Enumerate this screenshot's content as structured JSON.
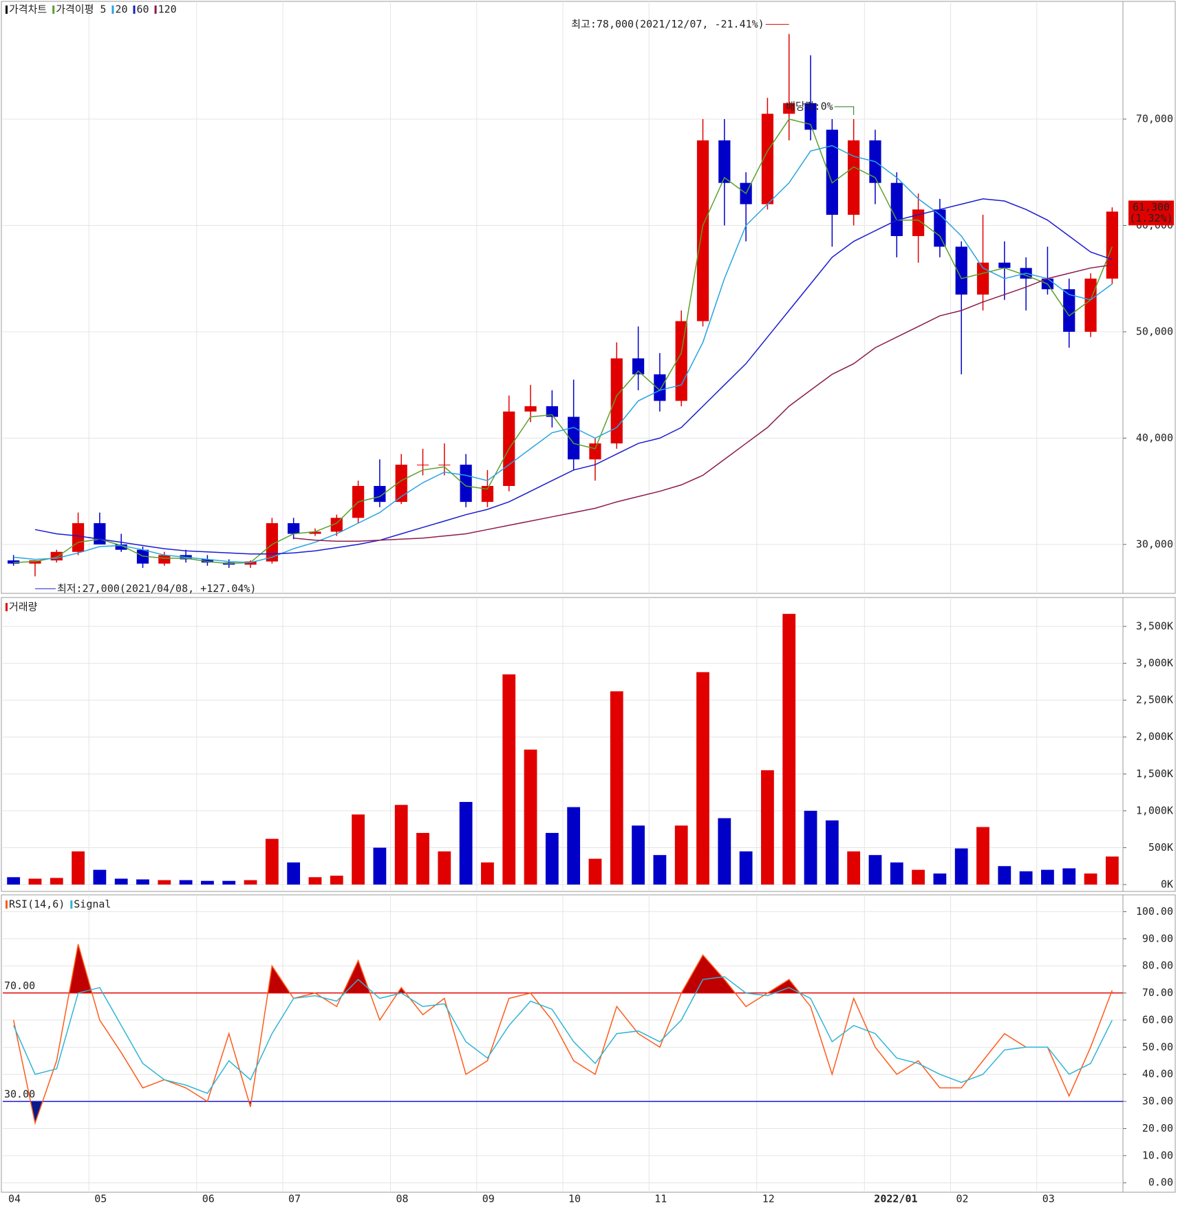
{
  "chart_data": [
    {
      "type": "candlestick",
      "title": "가격차트",
      "categories": [
        "04",
        null,
        null,
        null,
        "05",
        null,
        null,
        null,
        null,
        "06",
        null,
        null,
        null,
        "07",
        null,
        null,
        null,
        null,
        "08",
        null,
        null,
        null,
        "09",
        null,
        null,
        null,
        "10",
        null,
        null,
        null,
        "11",
        null,
        null,
        null,
        null,
        "12",
        null,
        null,
        null,
        null,
        "2022/01",
        null,
        null,
        null,
        "02",
        null,
        null,
        null,
        "03",
        null,
        null,
        null
      ],
      "open": [
        28500,
        28200,
        28500,
        29300,
        32000,
        30000,
        29500,
        28200,
        29000,
        28600,
        28300,
        28100,
        28400,
        32000,
        31000,
        31200,
        32500,
        35500,
        34000,
        37500,
        37500,
        37500,
        34000,
        35500,
        42500,
        43000,
        42000,
        38000,
        39500,
        47500,
        46000,
        43500,
        51000,
        68000,
        64000,
        62000,
        70500,
        71500,
        69000,
        61000,
        68000,
        64000,
        59000,
        61500,
        58000,
        53500,
        56500,
        56000,
        55000,
        54000,
        50000,
        55000
      ],
      "high": [
        29000,
        28400,
        29500,
        33000,
        33000,
        31000,
        29800,
        29300,
        29500,
        29000,
        28600,
        28500,
        32500,
        32500,
        31500,
        32800,
        36000,
        38000,
        38500,
        39000,
        39500,
        38500,
        37000,
        44000,
        45000,
        44500,
        45500,
        40000,
        49000,
        50500,
        48000,
        52000,
        70000,
        70000,
        65000,
        72000,
        78000,
        76000,
        70000,
        70000,
        69000,
        65000,
        63000,
        62500,
        58500,
        61000,
        58500,
        57000,
        58000,
        55000,
        55500,
        61700
      ],
      "low": [
        28000,
        27000,
        28300,
        29000,
        30000,
        29300,
        27800,
        28000,
        28300,
        28000,
        27800,
        27800,
        28200,
        30500,
        30800,
        30800,
        32000,
        33500,
        33800,
        36500,
        36500,
        33500,
        33500,
        35000,
        41500,
        41000,
        37000,
        36000,
        39000,
        44500,
        42500,
        43000,
        50500,
        60000,
        58500,
        61500,
        68000,
        68000,
        58000,
        60000,
        62000,
        57000,
        56500,
        57000,
        46000,
        52000,
        53000,
        52000,
        53500,
        48500,
        49500,
        54500
      ],
      "close": [
        28200,
        28500,
        29300,
        32000,
        30000,
        29500,
        28200,
        29000,
        28600,
        28300,
        28100,
        28400,
        32000,
        31000,
        31200,
        32500,
        35500,
        34000,
        37500,
        37500,
        37500,
        34000,
        35500,
        42500,
        43000,
        42000,
        38000,
        39500,
        47500,
        46000,
        43500,
        51000,
        68000,
        64000,
        62000,
        70500,
        71500,
        69000,
        61000,
        68000,
        64000,
        59000,
        61500,
        58000,
        53500,
        56500,
        56000,
        55000,
        54000,
        50000,
        55000,
        61300
      ],
      "up_color": "#e00000",
      "down_color": "#0000c8",
      "series": [
        {
          "name": "가격이평 5",
          "color": "#5aa02c",
          "values": [
            28300,
            28400,
            28800,
            30200,
            30500,
            29900,
            28900,
            28700,
            28700,
            28400,
            28200,
            28300,
            30000,
            31000,
            31200,
            32000,
            34000,
            34500,
            36000,
            37000,
            37300,
            35500,
            35200,
            39000,
            42000,
            42200,
            39500,
            39000,
            44000,
            46300,
            44500,
            48000,
            60000,
            64500,
            63000,
            67000,
            70000,
            69500,
            64000,
            65500,
            64500,
            60500,
            60500,
            59000,
            55000,
            55500,
            56000,
            55300,
            54500,
            51500,
            53000,
            58000
          ]
        },
        {
          "name": "20",
          "color": "#29a3e0",
          "values": [
            28800,
            28600,
            28700,
            29200,
            29800,
            29900,
            29500,
            29000,
            28800,
            28600,
            28400,
            28300,
            28800,
            29600,
            30200,
            31000,
            32000,
            33000,
            34500,
            35800,
            36800,
            36500,
            36000,
            37500,
            39000,
            40500,
            41000,
            40000,
            41000,
            43500,
            44500,
            45000,
            49000,
            55000,
            60000,
            62000,
            64000,
            67000,
            67500,
            66500,
            66000,
            64500,
            62500,
            61000,
            59000,
            56000,
            55000,
            55500,
            55000,
            53500,
            53000,
            54500
          ]
        },
        {
          "name": "60",
          "color": "#1a1ad0",
          "values": [
            null,
            31400,
            31000,
            30800,
            30500,
            30200,
            29900,
            29600,
            29400,
            29300,
            29200,
            29100,
            29100,
            29200,
            29400,
            29700,
            30000,
            30400,
            31000,
            31600,
            32200,
            32800,
            33300,
            34000,
            35000,
            36000,
            37000,
            37500,
            38500,
            39500,
            40000,
            41000,
            43000,
            45000,
            47000,
            49500,
            52000,
            54500,
            57000,
            58500,
            59500,
            60500,
            61000,
            61500,
            62000,
            62500,
            62300,
            61500,
            60500,
            59000,
            57500,
            56800
          ]
        },
        {
          "name": "120",
          "color": "#8b1a4a",
          "values": [
            null,
            null,
            null,
            null,
            null,
            null,
            null,
            null,
            null,
            null,
            null,
            null,
            null,
            30600,
            30400,
            30300,
            30300,
            30400,
            30500,
            30600,
            30800,
            31000,
            31400,
            31800,
            32200,
            32600,
            33000,
            33400,
            34000,
            34500,
            35000,
            35600,
            36500,
            38000,
            39500,
            41000,
            43000,
            44500,
            46000,
            47000,
            48500,
            49500,
            50500,
            51500,
            52000,
            52800,
            53500,
            54200,
            55000,
            55500,
            56000,
            56300
          ]
        }
      ],
      "ylim": [
        25400,
        81070
      ],
      "yticks": [
        {
          "value": 30000,
          "label": "30,000"
        },
        {
          "value": 40000,
          "label": "40,000"
        },
        {
          "value": 50000,
          "label": "50,000"
        },
        {
          "value": 60000,
          "label": "60,000"
        },
        {
          "value": 70000,
          "label": "70,000"
        }
      ],
      "grid": true,
      "annotations": {
        "high": "최고:78,000(2021/12/07, -21.41%)",
        "low": "최저:27,000(2021/04/08, +127.04%)",
        "dividend": "배당락:0%"
      },
      "last_price": {
        "value": 61300,
        "label": "61,300",
        "change": "(1.32%)"
      }
    },
    {
      "type": "bar",
      "title": "거래량",
      "values": [
        100000,
        80000,
        90000,
        450000,
        200000,
        80000,
        70000,
        60000,
        60000,
        50000,
        50000,
        60000,
        620000,
        300000,
        100000,
        120000,
        950000,
        500000,
        1080000,
        700000,
        450000,
        1120000,
        300000,
        2850000,
        1830000,
        700000,
        1050000,
        350000,
        2620000,
        800000,
        400000,
        800000,
        2880000,
        900000,
        450000,
        1550000,
        3670000,
        1000000,
        870000,
        450000,
        400000,
        300000,
        200000,
        150000,
        490000,
        780000,
        250000,
        180000,
        200000,
        220000,
        150000,
        380000
      ],
      "ylim": [
        -93000,
        3892000
      ],
      "yticks": [
        {
          "value": 0,
          "label": "0K"
        },
        {
          "value": 500000,
          "label": "500K"
        },
        {
          "value": 1000000,
          "label": "1,000K"
        },
        {
          "value": 1500000,
          "label": "1,500K"
        },
        {
          "value": 2000000,
          "label": "2,000K"
        },
        {
          "value": 2500000,
          "label": "2,500K"
        },
        {
          "value": 3000000,
          "label": "3,000K"
        },
        {
          "value": 3500000,
          "label": "3,500K"
        }
      ],
      "grid": true
    },
    {
      "type": "line",
      "series": [
        {
          "name": "RSI(14,6)",
          "color": "#ff5a1a",
          "values": [
            60,
            22,
            45,
            88,
            60,
            48,
            35,
            38,
            35,
            30,
            55,
            28,
            80,
            68,
            70,
            65,
            82,
            60,
            72,
            62,
            68,
            40,
            45,
            68,
            70,
            60,
            45,
            40,
            65,
            55,
            50,
            70,
            84,
            75,
            65,
            70,
            75,
            65,
            40,
            68,
            50,
            40,
            45,
            35,
            35,
            45,
            55,
            50,
            50,
            32,
            50,
            71
          ]
        },
        {
          "name": "Signal",
          "color": "#30b4d4",
          "values": [
            58,
            40,
            42,
            70,
            72,
            58,
            44,
            38,
            36,
            33,
            45,
            38,
            55,
            68,
            69,
            67,
            75,
            68,
            70,
            65,
            66,
            52,
            46,
            58,
            67,
            64,
            52,
            44,
            55,
            56,
            52,
            60,
            75,
            76,
            70,
            69,
            72,
            68,
            52,
            58,
            55,
            46,
            44,
            40,
            37,
            40,
            49,
            50,
            50,
            40,
            44,
            60
          ]
        }
      ],
      "levels": [
        {
          "value": 70,
          "label": "70.00",
          "color": "#e00000",
          "fill": "#c00000"
        },
        {
          "value": 30,
          "label": "30.00",
          "color": "#1a1ad0",
          "fill": "#0a1a8a"
        }
      ],
      "ylim": [
        -3.5,
        106.2
      ],
      "yticks": [
        {
          "value": 0,
          "label": "0.00"
        },
        {
          "value": 10,
          "label": "10.00"
        },
        {
          "value": 20,
          "label": "20.00"
        },
        {
          "value": 30,
          "label": "30.00"
        },
        {
          "value": 40,
          "label": "40.00"
        },
        {
          "value": 50,
          "label": "50.00"
        },
        {
          "value": 60,
          "label": "60.00"
        },
        {
          "value": 70,
          "label": "70.00"
        },
        {
          "value": 80,
          "label": "80.00"
        },
        {
          "value": 90,
          "label": "90.00"
        },
        {
          "value": 100,
          "label": "100.00"
        }
      ],
      "grid": true
    }
  ]
}
